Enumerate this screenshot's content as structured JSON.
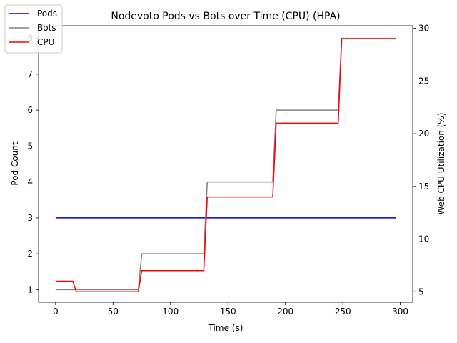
{
  "chart_data": {
    "type": "line",
    "title": "Nodevoto Pods vs Bots over Time (CPU)  (HPA)",
    "xlabel": "Time (s)",
    "ylabel_left": "Pod Count",
    "ylabel_right": "Web CPU Utilization (%)",
    "xlim": [
      -14.8,
      310.8
    ],
    "ylim_left": [
      0.65,
      8.35
    ],
    "ylim_right": [
      4.0,
      30.25
    ],
    "x_ticks": [
      0,
      50,
      100,
      150,
      200,
      250,
      300
    ],
    "y_ticks_left": [
      1,
      2,
      3,
      4,
      5,
      6,
      7,
      8
    ],
    "y_ticks_right": [
      5,
      10,
      15,
      20,
      25,
      30
    ],
    "legend_position": "upper-left",
    "series": [
      {
        "name": "Pods",
        "axis": "left",
        "color": "#0000cc",
        "x": [
          0,
          296
        ],
        "y": [
          3,
          3
        ]
      },
      {
        "name": "Bots",
        "axis": "left",
        "color": "#808080",
        "x": [
          0,
          72,
          75,
          129,
          132,
          189,
          192,
          246,
          249,
          296
        ],
        "y": [
          1,
          1,
          2,
          2,
          4,
          4,
          6,
          6,
          8,
          8
        ]
      },
      {
        "name": "CPU",
        "axis": "right",
        "color": "#ff0000",
        "x": [
          0,
          15,
          18,
          72,
          75,
          129,
          132,
          189,
          192,
          246,
          249,
          296
        ],
        "y": [
          6,
          6,
          5,
          5,
          7,
          7,
          14,
          14,
          21,
          21,
          29,
          29
        ]
      }
    ]
  }
}
